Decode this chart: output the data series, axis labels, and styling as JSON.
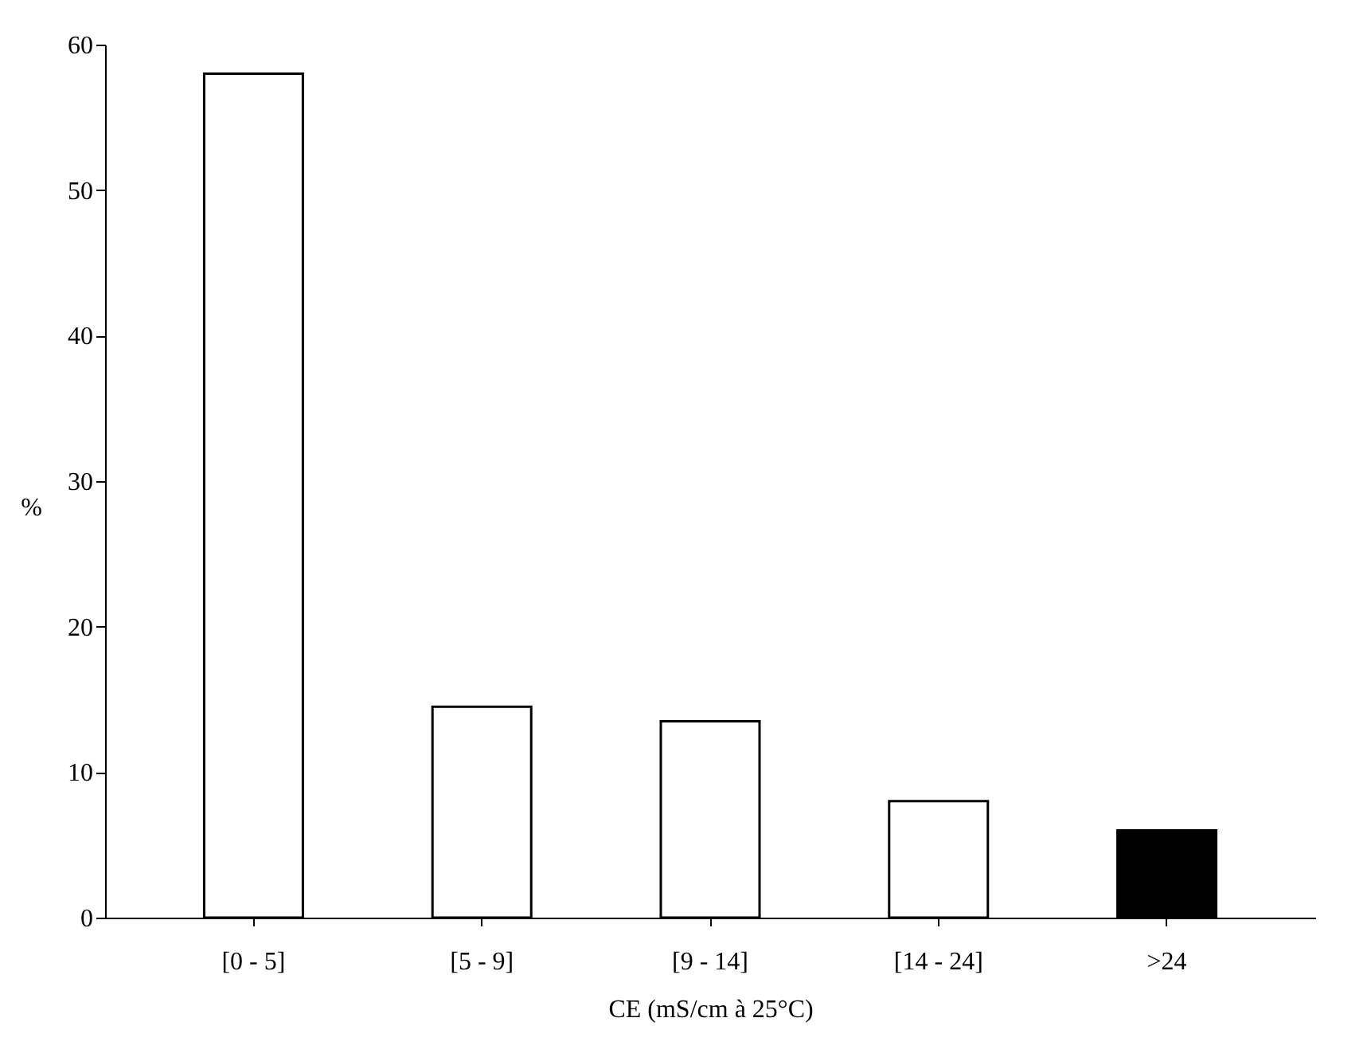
{
  "chart_data": {
    "type": "bar",
    "categories": [
      "[0 - 5]",
      "[5 - 9]",
      "[9 - 14]",
      "[14 - 24]",
      ">24"
    ],
    "values": [
      58,
      14.5,
      13.5,
      8,
      6
    ],
    "colors": [
      "#ffffff",
      "#ffffff",
      "#ffffff",
      "#ffffff",
      "#000000"
    ],
    "ylim": [
      0,
      60
    ],
    "yticks": [
      0,
      10,
      20,
      30,
      40,
      50,
      60
    ],
    "grid": false,
    "xlabel": "CE (mS/cm à 25°C)",
    "ylabel": "%"
  }
}
